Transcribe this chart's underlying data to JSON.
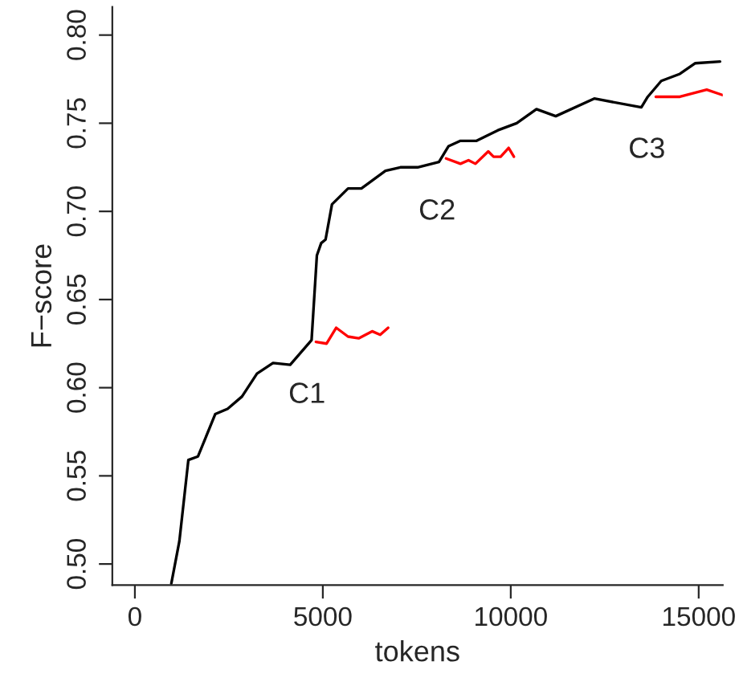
{
  "chart_data": {
    "type": "line",
    "xlabel": "tokens",
    "ylabel": "F−score",
    "xlim": [
      -600,
      15640
    ],
    "ylim": [
      0.488,
      0.816
    ],
    "xticks": [
      0,
      5000,
      10000,
      15000
    ],
    "yticks": [
      {
        "value": 0.5,
        "label": "0.50"
      },
      {
        "value": 0.55,
        "label": "0.55"
      },
      {
        "value": 0.6,
        "label": "0.60"
      },
      {
        "value": 0.65,
        "label": "0.65"
      },
      {
        "value": 0.7,
        "label": "0.70"
      },
      {
        "value": 0.75,
        "label": "0.75"
      },
      {
        "value": 0.8,
        "label": "0.80"
      }
    ],
    "grid": false,
    "legend": false,
    "marker": "none",
    "line_style": "solid",
    "series": [
      {
        "color": "#000000",
        "x": [
          970,
          1184,
          1423,
          1679,
          2137,
          2466,
          2850,
          3248,
          3675,
          4132,
          4701,
          4842,
          4957,
          5073,
          5244,
          5671,
          6026,
          6667,
          7064,
          7521,
          8090,
          8346,
          8662,
          9090,
          9658,
          10158,
          10684,
          11197,
          12222,
          13474,
          13645,
          14004,
          14500,
          14902,
          15568
        ],
        "values": [
          0.489,
          0.513,
          0.559,
          0.561,
          0.585,
          0.588,
          0.595,
          0.608,
          0.614,
          0.613,
          0.627,
          0.675,
          0.682,
          0.684,
          0.704,
          0.713,
          0.713,
          0.723,
          0.725,
          0.725,
          0.728,
          0.737,
          0.74,
          0.74,
          0.746,
          0.75,
          0.758,
          0.754,
          0.764,
          0.759,
          0.765,
          0.774,
          0.778,
          0.784,
          0.785
        ]
      },
      {
        "color": "#ff0000",
        "x": [
          4816,
          5098,
          5355,
          5671,
          5953,
          6312,
          6526,
          6739
        ],
        "values": [
          0.626,
          0.625,
          0.634,
          0.629,
          0.628,
          0.632,
          0.63,
          0.634
        ]
      },
      {
        "color": "#ff0000",
        "x": [
          8278,
          8662,
          8876,
          9060,
          9402,
          9543,
          9731,
          9944,
          10085
        ],
        "values": [
          0.73,
          0.727,
          0.729,
          0.727,
          0.734,
          0.731,
          0.731,
          0.736,
          0.731
        ]
      },
      {
        "color": "#ff0000",
        "x": [
          13859,
          14500,
          15214,
          15630
        ],
        "values": [
          0.765,
          0.765,
          0.769,
          0.766
        ]
      }
    ],
    "annotations": [
      "C1",
      "C2",
      "C3"
    ]
  }
}
